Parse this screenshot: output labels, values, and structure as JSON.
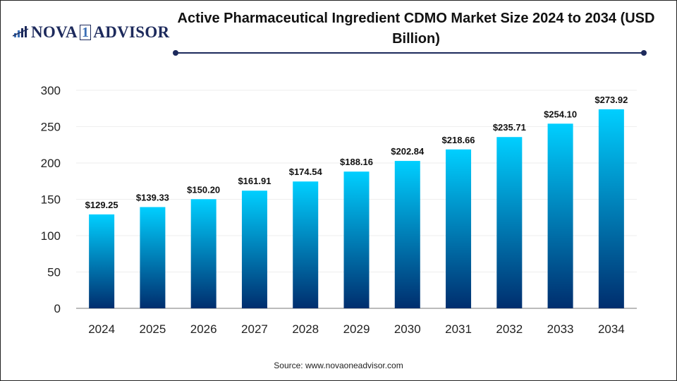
{
  "logo": {
    "text_main": "NOVA",
    "text_one": "1",
    "text_end": "ADVISOR"
  },
  "title": "Active Pharmaceutical Ingredient CDMO Market Size 2024 to 2034 (USD Billion)",
  "source": "Source: www.novaoneadvisor.com",
  "colors": {
    "bar_top": "#00cfff",
    "bar_bottom": "#002e6e",
    "title_line": "#1d2a5c"
  },
  "chart_data": {
    "type": "bar",
    "title": "Active Pharmaceutical Ingredient CDMO Market Size 2024 to 2034 (USD Billion)",
    "categories": [
      "2024",
      "2025",
      "2026",
      "2027",
      "2028",
      "2029",
      "2030",
      "2031",
      "2032",
      "2033",
      "2034"
    ],
    "values": [
      129.25,
      139.33,
      150.2,
      161.91,
      174.54,
      188.16,
      202.84,
      218.66,
      235.71,
      254.1,
      273.92
    ],
    "labels": [
      "$129.25",
      "$139.33",
      "$150.20",
      "$161.91",
      "$174.54",
      "$188.16",
      "$202.84",
      "$218.66",
      "$235.71",
      "$254.10",
      "$273.92"
    ],
    "yticks": [
      "0",
      "50",
      "100",
      "150",
      "200",
      "250",
      "300"
    ],
    "ylim": [
      0,
      300
    ],
    "xlabel": "",
    "ylabel": "",
    "grid": true,
    "legend": "none"
  }
}
